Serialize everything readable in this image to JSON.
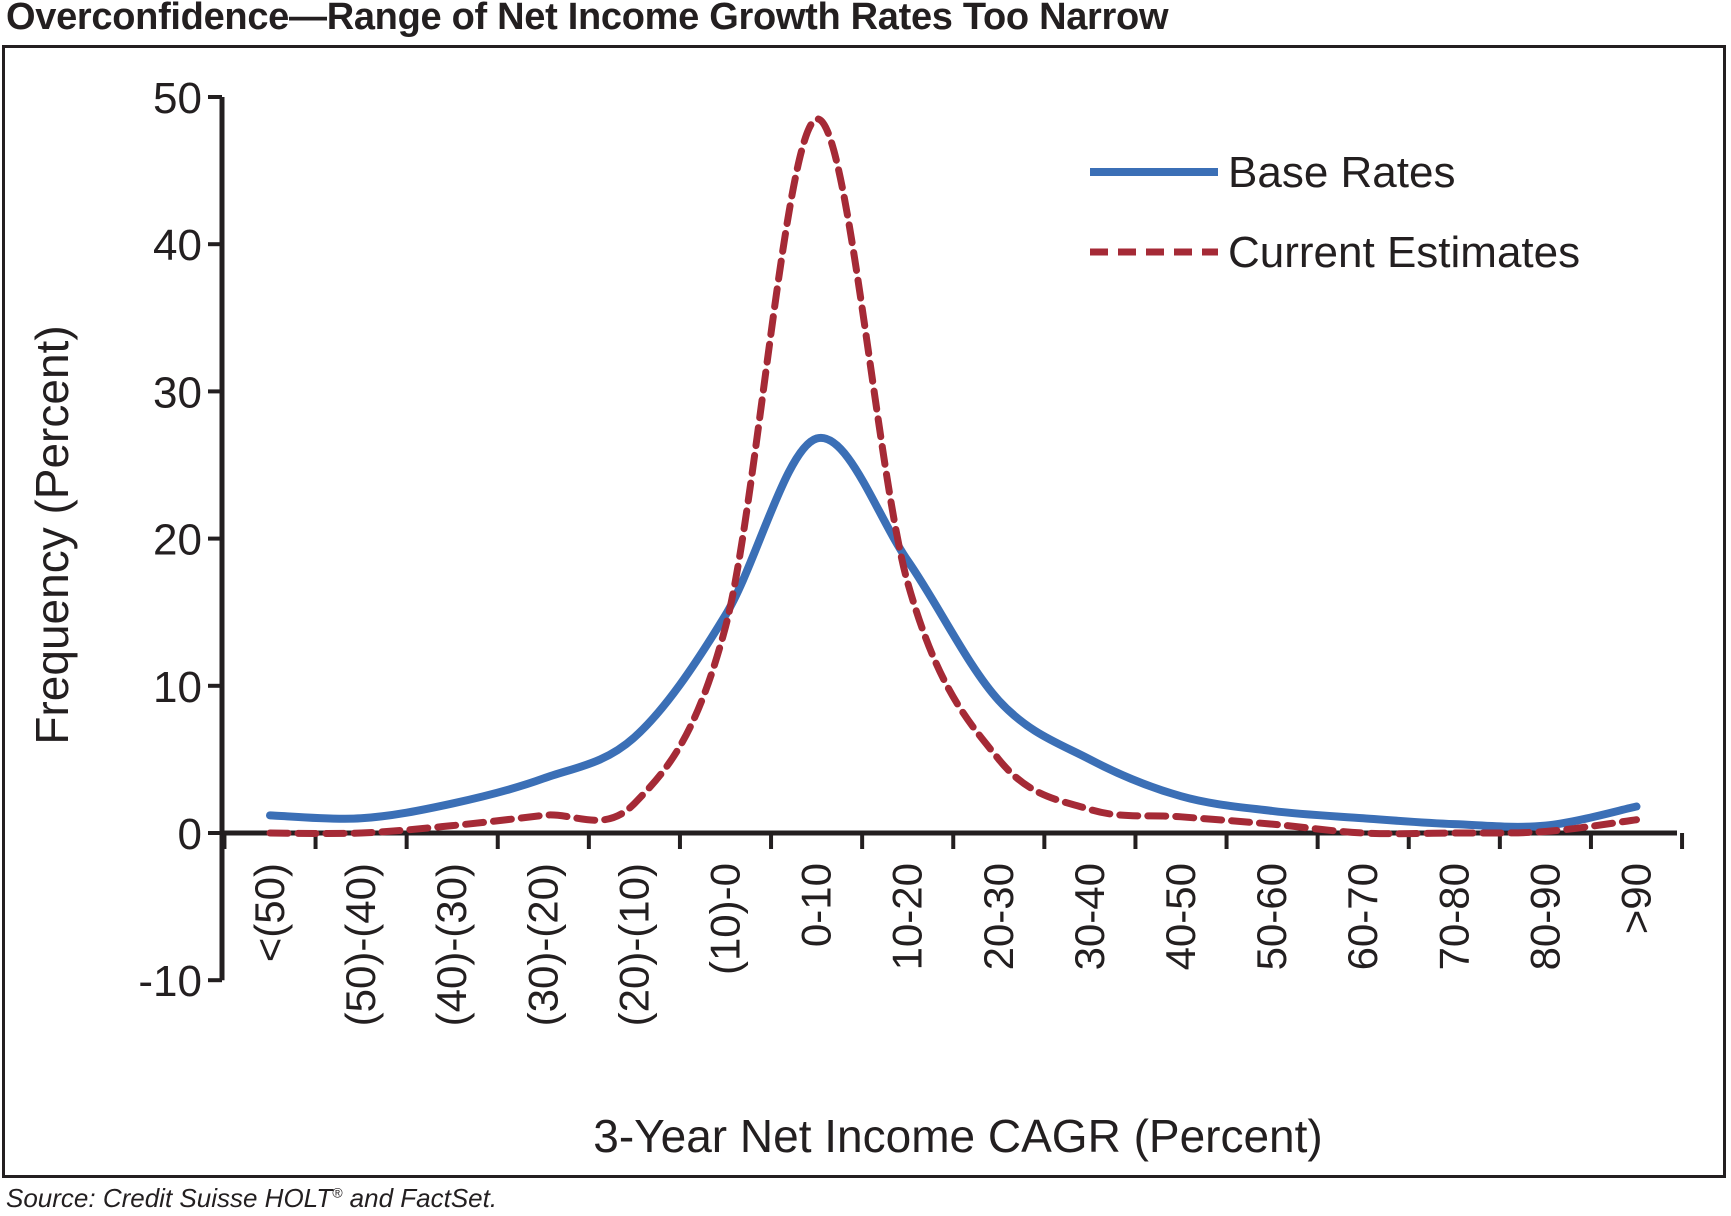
{
  "title": "Overconfidence—Range of Net Income Growth Rates Too Narrow",
  "source": {
    "prefix": "Source: Credit Suisse HOLT",
    "reg_mark": "®",
    "suffix": " and FactSet."
  },
  "colors": {
    "base_rates": "#3b6fb6",
    "current_estimates": "#a52a36",
    "axis": "#231f20",
    "text": "#231f20"
  },
  "chart_data": {
    "type": "line",
    "title": "",
    "xlabel": "3-Year Net Income CAGR (Percent)",
    "ylabel": "Frequency (Percent)",
    "ylim": [
      -10,
      50
    ],
    "yticks": [
      -10,
      0,
      10,
      20,
      30,
      40,
      50
    ],
    "categories": [
      "<(50)",
      "(50)-(40)",
      "(40)-(30)",
      "(30)-(20)",
      "(20)-(10)",
      "(10)-0",
      "0-10",
      "10-20",
      "20-30",
      "30-40",
      "40-50",
      "50-60",
      "60-70",
      "70-80",
      "80-90",
      ">90"
    ],
    "series": [
      {
        "name": "Base Rates",
        "style": "solid",
        "values": [
          1.2,
          1.0,
          2.0,
          3.7,
          6.5,
          14.8,
          26.8,
          18.5,
          9.0,
          5.0,
          2.5,
          1.5,
          1.0,
          0.6,
          0.5,
          1.8
        ]
      },
      {
        "name": "Current Estimates",
        "style": "dashed",
        "values": [
          0.0,
          0.0,
          0.5,
          1.2,
          2.0,
          14.0,
          48.5,
          17.0,
          5.0,
          1.6,
          1.1,
          0.6,
          0.0,
          0.0,
          0.1,
          0.9
        ]
      }
    ],
    "legend_position": "top-right",
    "grid": false
  }
}
